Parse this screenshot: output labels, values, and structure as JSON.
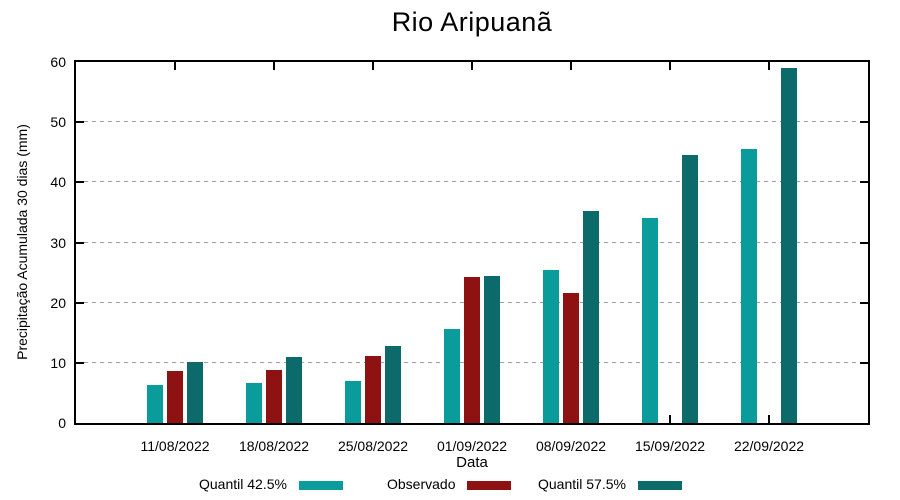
{
  "chart_data": {
    "type": "bar",
    "title": "Rio Aripuanã",
    "xlabel": "Data",
    "ylabel": "Precipitação Acumulada 30 dias (mm)",
    "ylim": [
      0,
      60
    ],
    "yticks": [
      0,
      10,
      20,
      30,
      40,
      50,
      60
    ],
    "grid": true,
    "grid_color": "#a0a0a0",
    "axis_color": "#000000",
    "legend_position": "bottom-center",
    "categories": [
      "11/08/2022",
      "18/08/2022",
      "25/08/2022",
      "01/09/2022",
      "08/09/2022",
      "15/09/2022",
      "22/09/2022"
    ],
    "series": [
      {
        "name": "Quantil 42.5%",
        "color": "#0a9b9b",
        "values": [
          6.3,
          6.6,
          7.0,
          15.6,
          25.5,
          34.0,
          45.5
        ]
      },
      {
        "name": "Observado",
        "color": "#8e1212",
        "values": [
          8.6,
          8.8,
          11.1,
          24.3,
          21.6,
          null,
          null
        ]
      },
      {
        "name": "Quantil 57.5%",
        "color": "#0c6a6a",
        "values": [
          10.2,
          10.9,
          12.8,
          24.5,
          35.3,
          44.5,
          59.0
        ]
      }
    ]
  }
}
